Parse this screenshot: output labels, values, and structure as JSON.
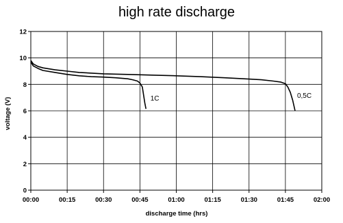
{
  "chart_data": {
    "type": "line",
    "title": "high rate discharge",
    "xlabel": "discharge time (hrs)",
    "ylabel": "voltage (V)",
    "x_tick_labels": [
      "00:00",
      "00:15",
      "00:30",
      "00:45",
      "01:00",
      "01:15",
      "01:30",
      "01:45",
      "02:00"
    ],
    "x_range_minutes": [
      0,
      120
    ],
    "ylim": [
      0,
      12
    ],
    "y_ticks": [
      0,
      2,
      4,
      6,
      8,
      10,
      12
    ],
    "grid": true,
    "legend": "none",
    "series": [
      {
        "name": "1C",
        "color": "#000000",
        "x_minutes": [
          0,
          1,
          3,
          5,
          10,
          15,
          20,
          25,
          30,
          35,
          40,
          42,
          44,
          45,
          46,
          46.5,
          47,
          47.5
        ],
        "y": [
          9.7,
          9.4,
          9.2,
          9.05,
          8.9,
          8.75,
          8.65,
          8.58,
          8.55,
          8.5,
          8.42,
          8.35,
          8.25,
          8.1,
          7.8,
          7.2,
          6.6,
          6.15
        ]
      },
      {
        "name": "0,5C",
        "color": "#000000",
        "x_minutes": [
          0,
          1,
          3,
          5,
          10,
          15,
          20,
          30,
          40,
          50,
          60,
          70,
          80,
          90,
          95,
          100,
          103,
          105,
          106,
          107,
          108,
          109
        ],
        "y": [
          9.8,
          9.55,
          9.35,
          9.25,
          9.1,
          9.0,
          8.9,
          8.8,
          8.75,
          8.7,
          8.65,
          8.58,
          8.5,
          8.4,
          8.35,
          8.25,
          8.18,
          8.05,
          7.8,
          7.4,
          6.8,
          6.0
        ]
      }
    ]
  }
}
